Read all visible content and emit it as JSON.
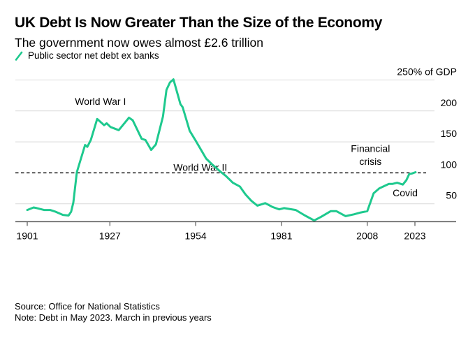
{
  "header": {
    "title": "UK Debt Is Now Greater Than the Size of the Economy",
    "subtitle": "The government now owes almost £2.6 trillion"
  },
  "legend": {
    "items": [
      {
        "label": "Public sector net debt ex banks",
        "color": "#1ec98e",
        "icon": "line-swatch-icon"
      }
    ]
  },
  "footer": {
    "source": "Source: Office for National Statistics",
    "note": "Note: Debt in May 2023. March in previous years"
  },
  "chart_data": {
    "type": "line",
    "title": "UK Debt Is Now Greater Than the Size of the Economy",
    "subtitle": "The government now owes almost £2.6 trillion",
    "xlabel": "",
    "ylabel": "% of GDP",
    "xlim": [
      1897,
      2036
    ],
    "ylim": [
      21,
      255
    ],
    "x_ticks": [
      1901,
      1927,
      1954,
      1981,
      2008,
      2023
    ],
    "x_tick_labels": [
      "1901",
      "1927",
      "1954",
      "1981",
      "2008",
      "2023"
    ],
    "y_ticks": [
      50,
      100,
      150,
      200,
      250
    ],
    "y_tick_labels": [
      "50",
      "100",
      "150",
      "200",
      "250% of GDP"
    ],
    "grid": true,
    "legend_position": "top-left",
    "reference_line": {
      "y": 100,
      "style": "dashed",
      "color": "#000000"
    },
    "annotations": [
      {
        "text": "World War I",
        "x": 1916,
        "y": 210
      },
      {
        "text": "World War II",
        "x": 1947,
        "y": 103
      },
      {
        "text": "Financial",
        "x": 2009,
        "y": 134
      },
      {
        "text": "crisis",
        "x": 2009,
        "y": 113
      },
      {
        "text": "Covid",
        "x": 2016,
        "y": 62
      }
    ],
    "series": [
      {
        "name": "Public sector net debt ex banks",
        "color": "#1ec98e",
        "x": [
          1901,
          1903,
          1904,
          1906.3,
          1908.2,
          1910,
          1912.2,
          1914,
          1914.8,
          1915.5,
          1916.6,
          1919.2,
          1919.9,
          1921,
          1923,
          1925.2,
          1926,
          1927.2,
          1929.8,
          1933,
          1934.2,
          1937,
          1938.2,
          1940,
          1941.5,
          1943.7,
          1944.8,
          1945.9,
          1947,
          1949.2,
          1949.9,
          1952.1,
          1954,
          1957.3,
          1959.1,
          1962,
          1963.5,
          1965.7,
          1967.9,
          1969.7,
          1971.5,
          1973.4,
          1975.9,
          1978.1,
          1980.3,
          1981.8,
          1985.5,
          1988.4,
          1991.3,
          1993.5,
          1996.5,
          1998.3,
          2001.2,
          2003.8,
          2006,
          2008,
          2010,
          2011.8,
          2014.8,
          2015.9,
          2017.4,
          2019.2,
          2020.3,
          2021.2,
          2022.1,
          2023.2
        ],
        "values": [
          40,
          44,
          43,
          40,
          40,
          37,
          32,
          31,
          37,
          52,
          101,
          145,
          142,
          153,
          187,
          177,
          180,
          174,
          169,
          189,
          185,
          155,
          153,
          137,
          146,
          191,
          234,
          246,
          251,
          211,
          206,
          168,
          152,
          123,
          114,
          101,
          95,
          84,
          78,
          65,
          55,
          47,
          51,
          45,
          41,
          43,
          40,
          31,
          23,
          29,
          38,
          38,
          30,
          33,
          36,
          38,
          67,
          75,
          82,
          82,
          84,
          81,
          88,
          98,
          99,
          101
        ]
      }
    ]
  }
}
